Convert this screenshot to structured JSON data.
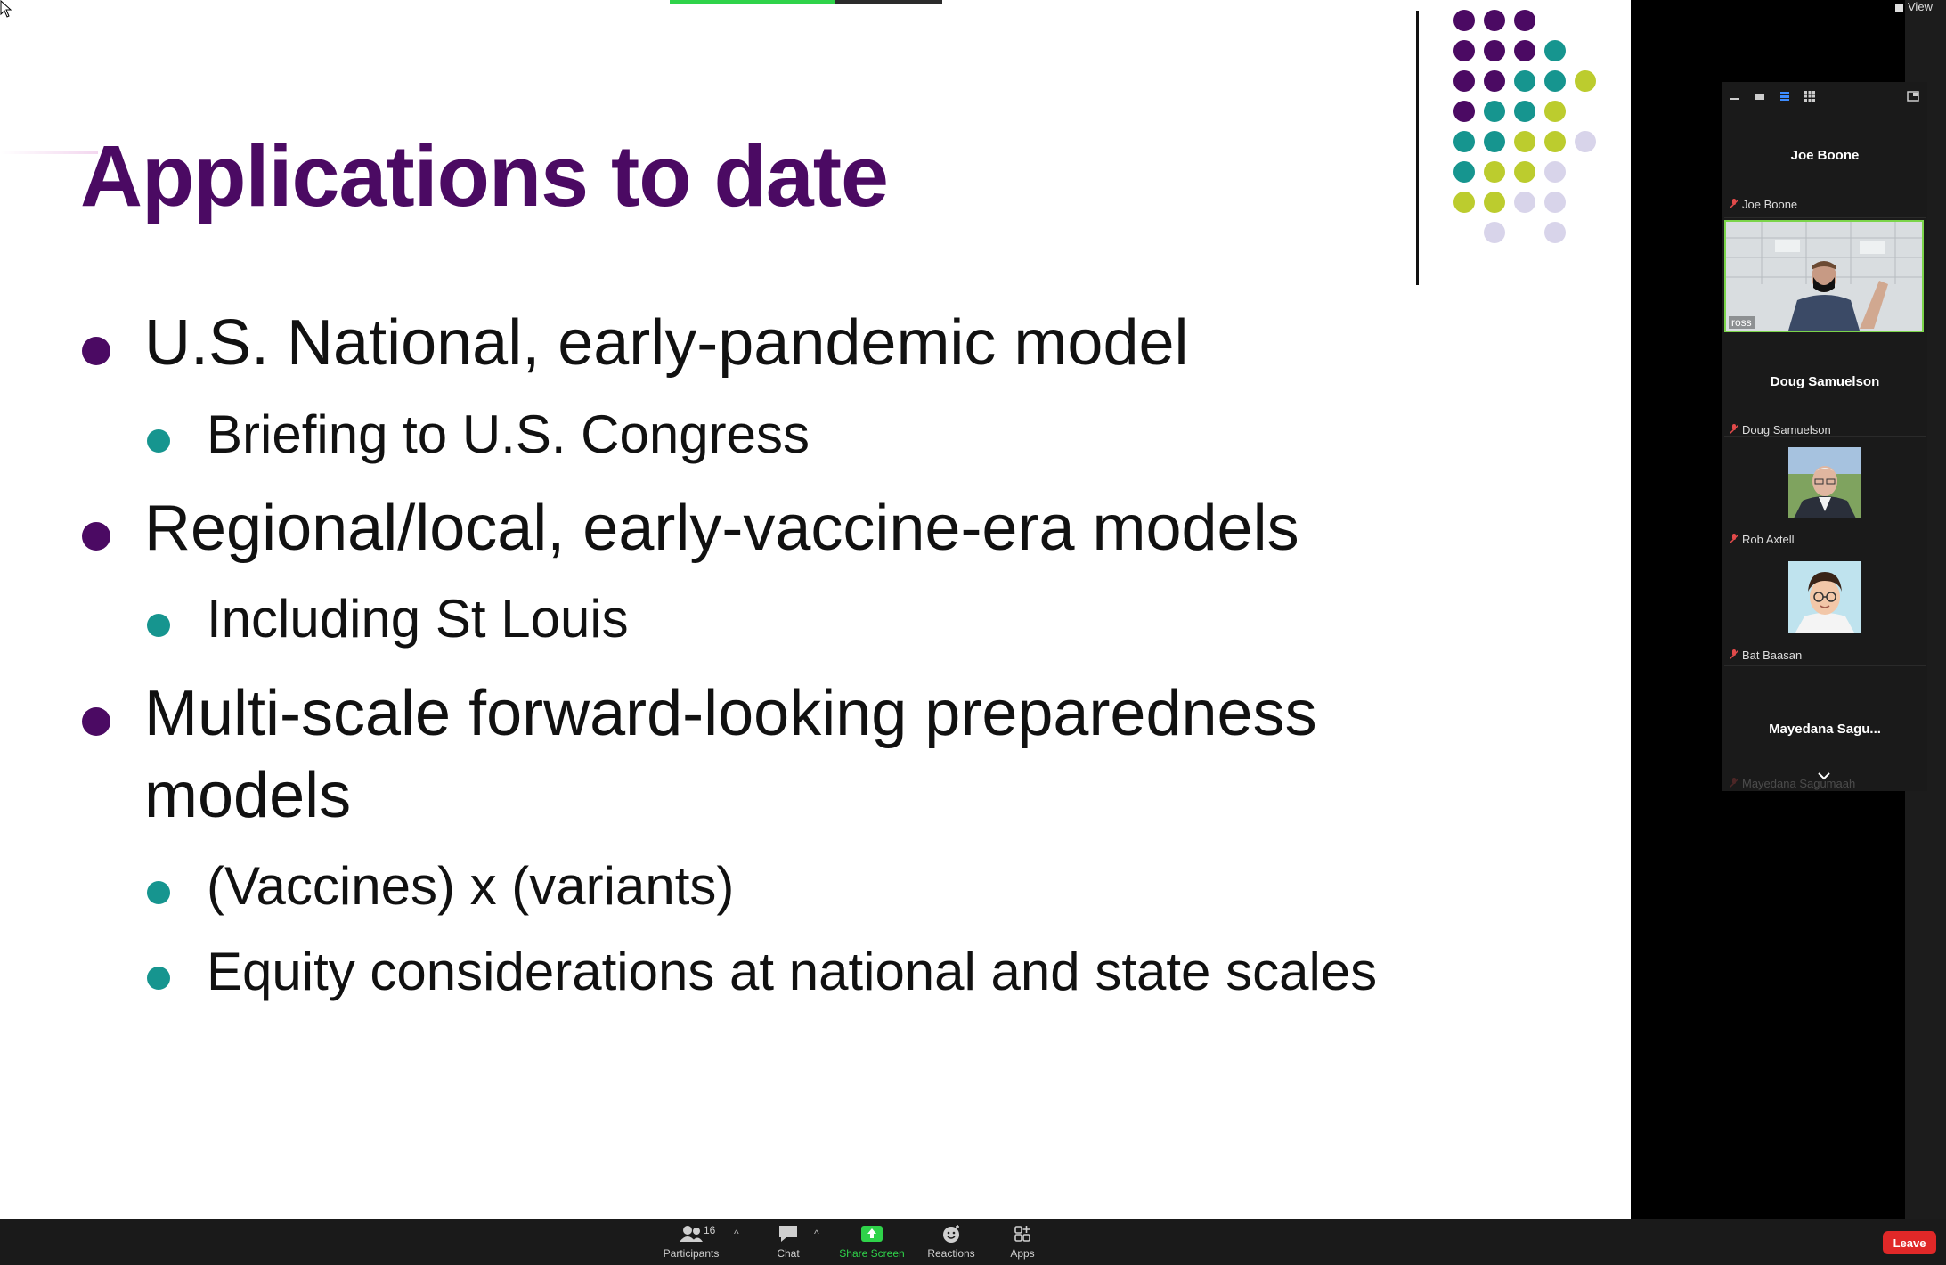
{
  "slide": {
    "title": "Applications to date",
    "bullets": [
      {
        "level": 1,
        "text": "U.S. National, early-pandemic model"
      },
      {
        "level": 2,
        "text": "Briefing to U.S. Congress"
      },
      {
        "level": 1,
        "text": "Regional/local, early-vaccine-era models"
      },
      {
        "level": 2,
        "text": "Including St Louis"
      },
      {
        "level": 1,
        "text": "Multi-scale forward-looking preparedness"
      },
      {
        "level": 1,
        "text": "models"
      },
      {
        "level": 2,
        "text": "(Vaccines) x (variants)"
      },
      {
        "level": 2,
        "text": "Equity considerations at national and state scales"
      }
    ],
    "colors": {
      "title": "#4b0a63",
      "bullet_l1": "#4b0a63",
      "bullet_l2": "#16958f",
      "dot_purple": "#4b0a63",
      "dot_teal": "#16958f",
      "dot_lime": "#bccc2e",
      "dot_lavender": "#d8d4ea"
    }
  },
  "view_button": {
    "label": "View"
  },
  "participants": {
    "count": "16",
    "tiles": [
      {
        "big_name": "Joe Boone",
        "label": "Joe Boone"
      },
      {
        "video_caption": "ross"
      },
      {
        "big_name": "Doug Samuelson",
        "label": "Doug Samuelson"
      },
      {
        "label": "Rob Axtell"
      },
      {
        "label": "Bat Baasan"
      },
      {
        "big_name": "Mayedana  Sagu...",
        "label": "Mayedana Sagumaah"
      }
    ]
  },
  "toolbar": {
    "participants_label": "Participants",
    "chat_label": "Chat",
    "share_label": "Share Screen",
    "reactions_label": "Reactions",
    "apps_label": "Apps",
    "leave_label": "Leave",
    "share_color": "#2fd34a",
    "leave_color": "#e02828"
  }
}
